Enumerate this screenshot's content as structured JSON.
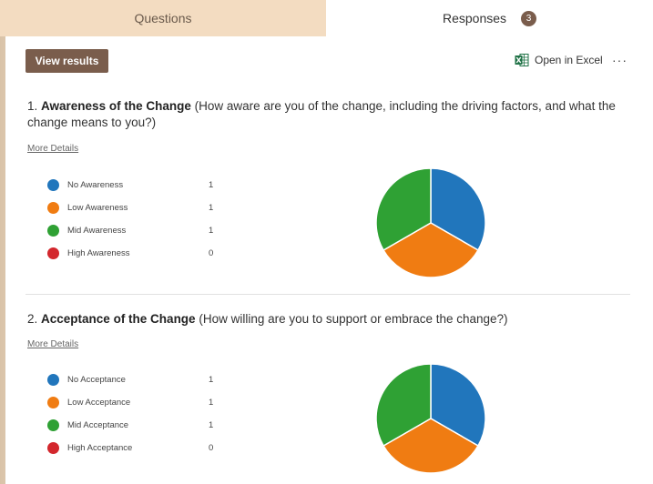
{
  "tabs": {
    "questions_label": "Questions",
    "responses_label": "Responses",
    "responses_count": "3"
  },
  "toolbar": {
    "view_results_label": "View results",
    "open_in_excel_label": "Open in Excel",
    "more_label": "···"
  },
  "colors": {
    "accent_brown": "#7a5d4c",
    "blue": "#2176bc",
    "orange": "#f07c12",
    "green": "#2fa134",
    "red": "#d3272d"
  },
  "questions": [
    {
      "number": "1.",
      "title": "Awareness of the Change",
      "description": "(How aware are you of the change, including the driving factors, and what the change means to you?)",
      "more_details": "More Details",
      "options": [
        {
          "label": "No Awareness",
          "count": "1"
        },
        {
          "label": "Low Awareness",
          "count": "1"
        },
        {
          "label": "Mid Awareness",
          "count": "1"
        },
        {
          "label": "High Awareness",
          "count": "0"
        }
      ]
    },
    {
      "number": "2.",
      "title": "Acceptance of the Change",
      "description": "(How willing are you to support or embrace the change?)",
      "more_details": "More Details",
      "options": [
        {
          "label": "No Acceptance",
          "count": "1"
        },
        {
          "label": "Low Acceptance",
          "count": "1"
        },
        {
          "label": "Mid Acceptance",
          "count": "1"
        },
        {
          "label": "High Acceptance",
          "count": "0"
        }
      ]
    }
  ],
  "chart_data": [
    {
      "type": "pie",
      "categories": [
        "No Awareness",
        "Low Awareness",
        "Mid Awareness",
        "High Awareness"
      ],
      "values": [
        1,
        1,
        1,
        0
      ],
      "colors": [
        "#2176bc",
        "#f07c12",
        "#2fa134",
        "#d3272d"
      ]
    },
    {
      "type": "pie",
      "categories": [
        "No Acceptance",
        "Low Acceptance",
        "Mid Acceptance",
        "High Acceptance"
      ],
      "values": [
        1,
        1,
        1,
        0
      ],
      "colors": [
        "#2176bc",
        "#f07c12",
        "#2fa134",
        "#d3272d"
      ]
    }
  ]
}
